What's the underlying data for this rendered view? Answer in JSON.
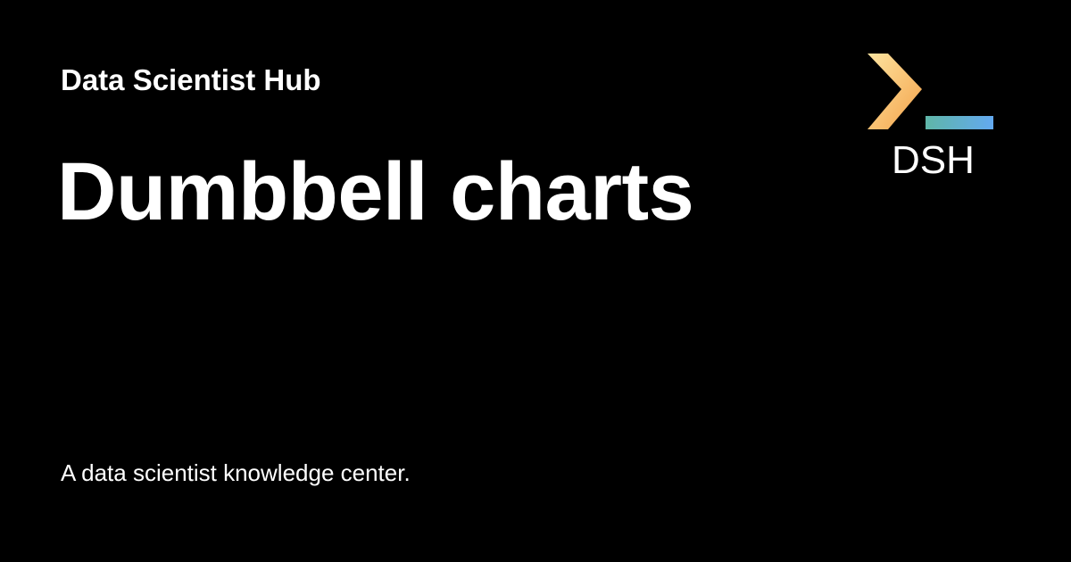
{
  "header": {
    "site_name": "Data Scientist Hub"
  },
  "main": {
    "title": "Dumbbell charts",
    "tagline": "A data scientist knowledge center."
  },
  "logo": {
    "icon": "terminal-prompt-icon",
    "text": "DSH",
    "chevron_color_start": "#fde4a0",
    "chevron_color_end": "#f4a24a",
    "underscore_color_start": "#5fb6a8",
    "underscore_color_end": "#63a9f0"
  },
  "colors": {
    "background": "#000000",
    "text": "#ffffff"
  }
}
